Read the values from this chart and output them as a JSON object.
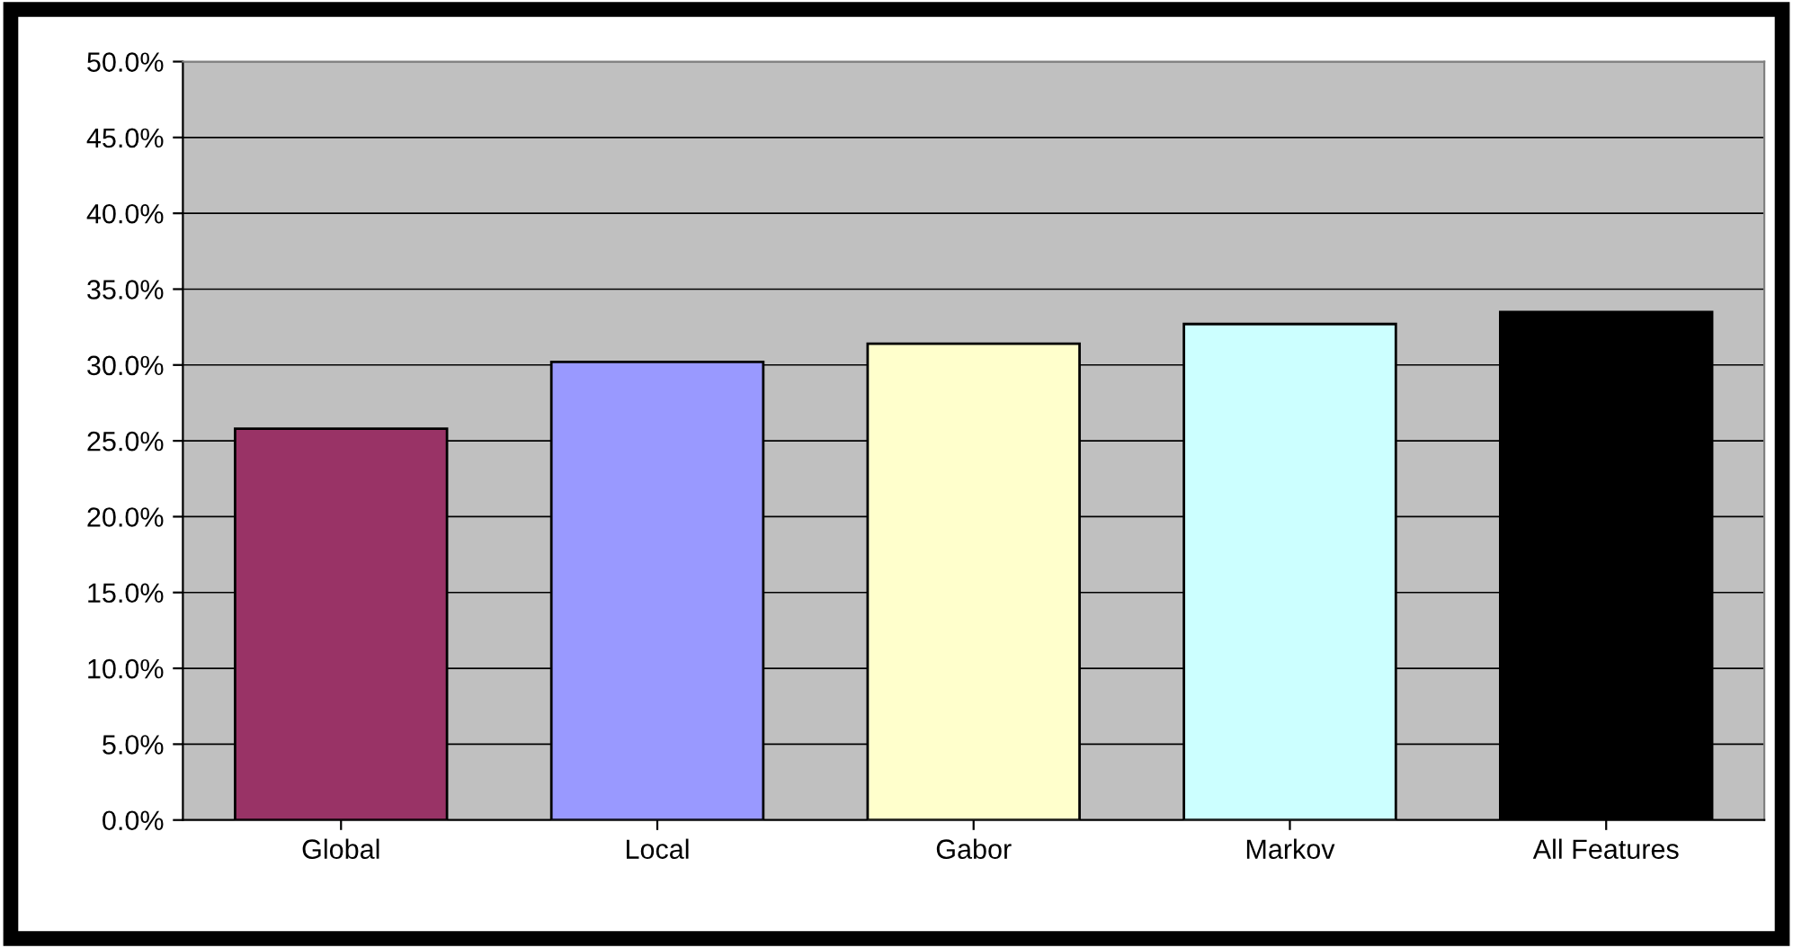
{
  "chart_data": {
    "type": "bar",
    "categories": [
      "Global",
      "Local",
      "Gabor",
      "Markov",
      "All Features"
    ],
    "values": [
      25.8,
      30.2,
      31.4,
      32.7,
      33.5
    ],
    "colors": [
      "#993366",
      "#9999ff",
      "#ffffcc",
      "#ccffff",
      "#000000"
    ],
    "ylim": [
      0,
      50
    ],
    "yticks": [
      {
        "value": 0,
        "label": "0.0%"
      },
      {
        "value": 5,
        "label": "5.0%"
      },
      {
        "value": 10,
        "label": "10.0%"
      },
      {
        "value": 15,
        "label": "15.0%"
      },
      {
        "value": 20,
        "label": "20.0%"
      },
      {
        "value": 25,
        "label": "25.0%"
      },
      {
        "value": 30,
        "label": "30.0%"
      },
      {
        "value": 35,
        "label": "35.0%"
      },
      {
        "value": 40,
        "label": "40.0%"
      },
      {
        "value": 45,
        "label": "45.0%"
      },
      {
        "value": 50,
        "label": "50.0%"
      }
    ],
    "grid": "y",
    "legend": false
  }
}
